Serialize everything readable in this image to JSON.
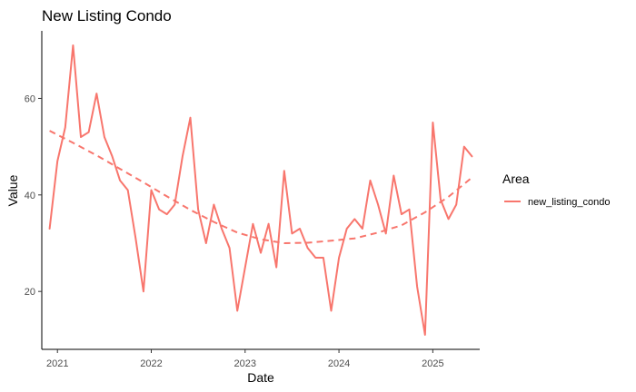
{
  "chart_data": {
    "type": "line",
    "title": "New Listing Condo",
    "xlabel": "Date",
    "ylabel": "Value",
    "x_ticks": [
      "2021",
      "2022",
      "2023",
      "2024",
      "2025"
    ],
    "y_ticks": [
      "20",
      "40",
      "60"
    ],
    "xlim": [
      "2020-11-01",
      "2025-07-01"
    ],
    "ylim": [
      8,
      74
    ],
    "grid": false,
    "legend": {
      "title": "Area",
      "position": "right",
      "entries": [
        "new_listing_condo"
      ]
    },
    "series": [
      {
        "name": "new_listing_condo",
        "color": "#F8766D",
        "style": "solid",
        "x": [
          "2020-12",
          "2021-01",
          "2021-02",
          "2021-03",
          "2021-04",
          "2021-05",
          "2021-06",
          "2021-07",
          "2021-08",
          "2021-09",
          "2021-10",
          "2021-11",
          "2021-12",
          "2022-01",
          "2022-02",
          "2022-03",
          "2022-04",
          "2022-05",
          "2022-06",
          "2022-07",
          "2022-08",
          "2022-09",
          "2022-10",
          "2022-11",
          "2022-12",
          "2023-01",
          "2023-02",
          "2023-03",
          "2023-04",
          "2023-05",
          "2023-06",
          "2023-07",
          "2023-08",
          "2023-09",
          "2023-10",
          "2023-11",
          "2023-12",
          "2024-01",
          "2024-02",
          "2024-03",
          "2024-04",
          "2024-05",
          "2024-06",
          "2024-07",
          "2024-08",
          "2024-09",
          "2024-10",
          "2024-11",
          "2024-12",
          "2025-01",
          "2025-02",
          "2025-03",
          "2025-04",
          "2025-05",
          "2025-06"
        ],
        "values": [
          33,
          47,
          54,
          71,
          52,
          53,
          61,
          52,
          48,
          43,
          41,
          31,
          20,
          41,
          37,
          36,
          38,
          48,
          56,
          37,
          30,
          38,
          33,
          29,
          16,
          25,
          34,
          28,
          34,
          25,
          45,
          32,
          33,
          29,
          27,
          27,
          16,
          27,
          33,
          35,
          33,
          43,
          38,
          32,
          44,
          36,
          37,
          21,
          11,
          55,
          39,
          35,
          38,
          50,
          48
        ]
      },
      {
        "name": "",
        "color": "#F8766D",
        "style": "dashed",
        "x": [
          "2020-12",
          "2021-03",
          "2021-06",
          "2021-09",
          "2021-12",
          "2022-03",
          "2022-06",
          "2022-09",
          "2022-12",
          "2023-03",
          "2023-06",
          "2023-09",
          "2023-12",
          "2024-03",
          "2024-06",
          "2024-09",
          "2024-12",
          "2025-03",
          "2025-06"
        ],
        "values": [
          53.3,
          50.8,
          48.2,
          45.4,
          42.6,
          39.7,
          36.9,
          34.4,
          32.2,
          30.8,
          30.0,
          30.1,
          30.5,
          31.0,
          32.2,
          33.7,
          36.4,
          39.6,
          43.6
        ]
      }
    ]
  }
}
